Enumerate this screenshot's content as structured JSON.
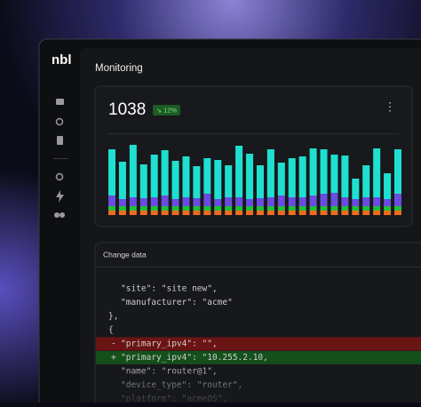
{
  "sidebar": {
    "logo": "nbl"
  },
  "page": {
    "title": "Monitoring"
  },
  "metric": {
    "value": 1038,
    "badge": "↘ 12%",
    "menu": "⋮"
  },
  "chart_data": {
    "type": "bar",
    "stacked": true,
    "series": [
      {
        "color": "#f26b1d",
        "values": [
          5,
          5,
          5,
          5,
          5,
          5,
          5,
          5,
          5,
          5,
          5,
          5,
          5,
          5,
          5,
          5,
          5,
          5,
          5,
          5,
          5,
          5,
          5,
          5,
          5,
          5,
          5,
          5
        ]
      },
      {
        "color": "#1fbf3a",
        "values": [
          5,
          5,
          5,
          5,
          5,
          5,
          5,
          5,
          5,
          5,
          5,
          5,
          5,
          5,
          5,
          5,
          5,
          5,
          5,
          5,
          5,
          5,
          5,
          5,
          5,
          5,
          5,
          5
        ]
      },
      {
        "color": "#6a4ce0",
        "values": [
          12,
          8,
          10,
          9,
          10,
          12,
          8,
          10,
          9,
          14,
          8,
          10,
          10,
          8,
          9,
          10,
          12,
          10,
          10,
          12,
          14,
          15,
          10,
          8,
          10,
          10,
          8,
          14
        ]
      },
      {
        "color": "#1fe0d0",
        "values": [
          52,
          42,
          59,
          38,
          48,
          51,
          43,
          46,
          36,
          40,
          44,
          36,
          58,
          51,
          37,
          54,
          37,
          44,
          46,
          53,
          50,
          43,
          47,
          23,
          36,
          55,
          29,
          50
        ]
      }
    ]
  },
  "change": {
    "title": "Change data",
    "lines": [
      {
        "text": "\"site\": \"site new\","
      },
      {
        "text": "\"manufacturer\": \"acme\""
      },
      {
        "text": "},"
      },
      {
        "text": "{"
      },
      {
        "marker": "-",
        "text": "\"primary_ipv4\": \"\","
      },
      {
        "marker": "+",
        "text": "\"primary_ipv4\": \"10.255.2.10,"
      },
      {
        "text": "\"name\": \"router@1\","
      },
      {
        "text": "\"device_type\": \"router\","
      },
      {
        "text": "\"platform\": \"acmeOS\","
      }
    ]
  }
}
